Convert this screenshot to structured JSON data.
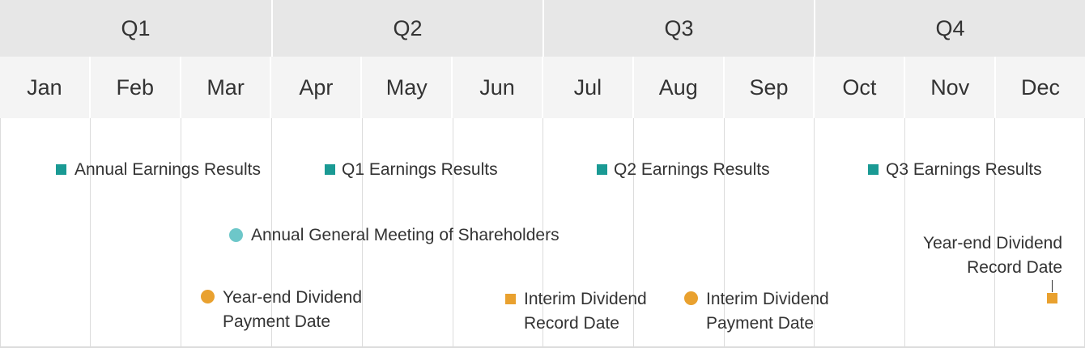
{
  "quarters": [
    "Q1",
    "Q2",
    "Q3",
    "Q4"
  ],
  "months": [
    "Jan",
    "Feb",
    "Mar",
    "Apr",
    "May",
    "Jun",
    "Jul",
    "Aug",
    "Sep",
    "Oct",
    "Nov",
    "Dec"
  ],
  "colors": {
    "earnings": "#1a9a94",
    "meeting": "#6dc7c9",
    "dividend": "#e9a12f"
  },
  "events": {
    "annual_earnings": "Annual Earnings Results",
    "q1_earnings": "Q1 Earnings Results",
    "q2_earnings": "Q2 Earnings Results",
    "q3_earnings": "Q3 Earnings Results",
    "agm": "Annual General Meeting of Shareholders",
    "year_end_payment_line1": "Year-end Dividend",
    "year_end_payment_line2": "Payment Date",
    "interim_record_line1": "Interim Dividend",
    "interim_record_line2": "Record Date",
    "interim_payment_line1": "Interim Dividend",
    "interim_payment_line2": "Payment Date",
    "year_end_record_line1": "Year-end Dividend",
    "year_end_record_line2": "Record Date"
  }
}
